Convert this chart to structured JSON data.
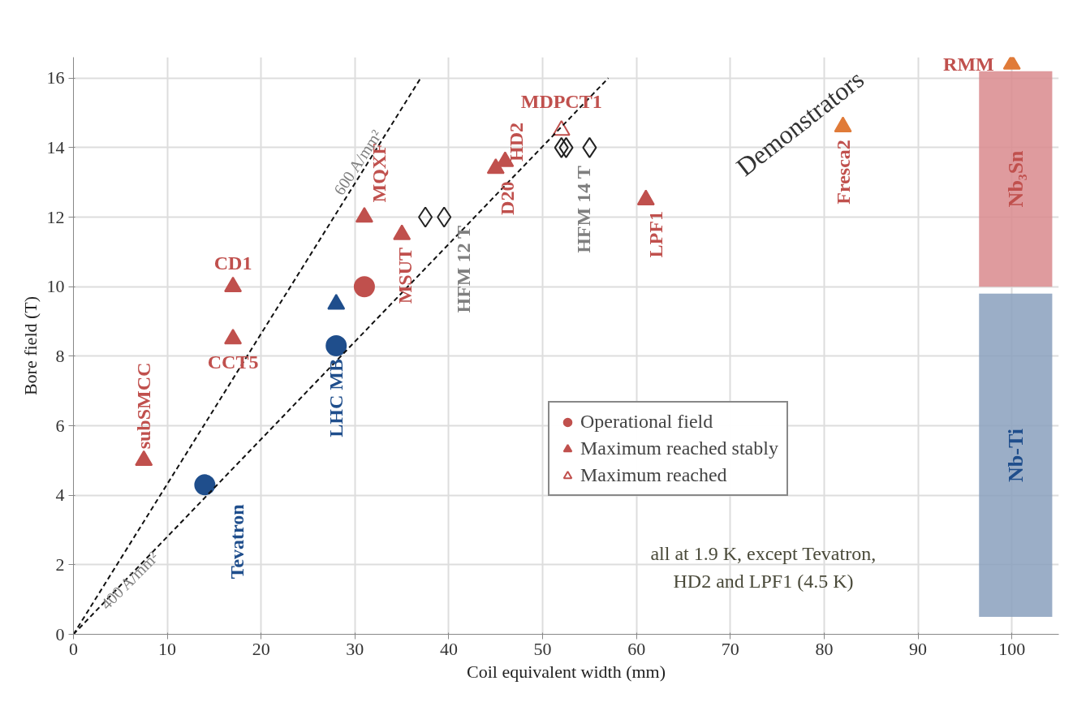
{
  "chart_data": {
    "type": "scatter",
    "xlabel": "Coil equivalent width (mm)",
    "ylabel": "Bore field (T)",
    "xlim": [
      0,
      105
    ],
    "ylim": [
      0,
      16.6
    ],
    "xticks": [
      0,
      10,
      20,
      30,
      40,
      50,
      60,
      70,
      80,
      90,
      100
    ],
    "yticks": [
      0,
      2,
      4,
      6,
      8,
      10,
      12,
      14,
      16
    ],
    "grid": true,
    "legend": "right",
    "series": [
      {
        "name": "Operational field",
        "color": "#c0504d",
        "marker": "circle",
        "x": [
          31
        ],
        "values": [
          10
        ]
      },
      {
        "color": "#1f4e8c",
        "marker": "circle",
        "x": [
          14,
          28
        ],
        "values": [
          4.3,
          8.3
        ]
      },
      {
        "name": "Maximum reached stably",
        "color": "#c0504d",
        "marker": "triangle",
        "x": [
          7.5,
          17,
          17,
          31,
          35,
          45,
          46,
          61
        ],
        "values": [
          5,
          10,
          8.5,
          12,
          11.5,
          13.4,
          13.6,
          12.5
        ]
      },
      {
        "name": "Maximum reached",
        "color": "#c0504d",
        "marker": "triangle",
        "x": [
          52
        ],
        "values": [
          14.5
        ]
      },
      {
        "color": "#1f4e8c",
        "marker": "triangle",
        "x": [
          28
        ],
        "values": [
          9.5
        ]
      },
      {
        "color": "#e07b39",
        "marker": "triangle",
        "x": [
          82,
          100
        ],
        "values": [
          14.6,
          16.4
        ]
      },
      {
        "color": "#222222",
        "marker": "diamond",
        "x": [
          37.5,
          39.5,
          52,
          52.5,
          55
        ],
        "values": [
          12,
          12,
          14,
          14,
          14
        ]
      },
      {
        "type": "line",
        "color": "#111111",
        "line_style": "dashed",
        "marker": "none",
        "x": [
          0,
          37
        ],
        "values": [
          0,
          16
        ]
      },
      {
        "type": "line",
        "color": "#111111",
        "line_style": "dashed",
        "marker": "none",
        "x": [
          0,
          57
        ],
        "values": [
          0,
          16
        ]
      }
    ],
    "bands": [
      {
        "axis": "y",
        "from": 10,
        "to": 16.2,
        "label": "Nb₃Sn",
        "color": "#d98a8d"
      },
      {
        "axis": "y",
        "from": 0.5,
        "to": 9.8,
        "label": "Nb-Ti",
        "color": "#8aa0bd"
      }
    ],
    "annotations": [
      {
        "text": "subSMCC",
        "x": 7.5,
        "y": 5
      },
      {
        "text": "CD1",
        "x": 17,
        "y": 10
      },
      {
        "text": "CCT5",
        "x": 17,
        "y": 8.5
      },
      {
        "text": "Tevatron",
        "x": 14,
        "y": 4.3
      },
      {
        "text": "LHC MB",
        "x": 28,
        "y": 8.3
      },
      {
        "text": "MQXF",
        "x": 31,
        "y": 12
      },
      {
        "text": "MSUT",
        "x": 35,
        "y": 11.5
      },
      {
        "text": "HFM 12 T",
        "x": 39.5,
        "y": 12
      },
      {
        "text": "D20",
        "x": 45,
        "y": 13.4
      },
      {
        "text": "HD2",
        "x": 46,
        "y": 13.6
      },
      {
        "text": "MDPCT1",
        "x": 52,
        "y": 14.5
      },
      {
        "text": "HFM 14 T",
        "x": 53,
        "y": 14
      },
      {
        "text": "LPF1",
        "x": 61,
        "y": 12.5
      },
      {
        "text": "Fresca2",
        "x": 82,
        "y": 14.6
      },
      {
        "text": "RMM",
        "x": 100,
        "y": 16.4
      },
      {
        "text": "600 A/mm²",
        "x": 31,
        "y": 13.4
      },
      {
        "text": "400 A/mm²",
        "x": 6,
        "y": 1.7
      },
      "Demonstrators",
      "all at 1.9 K, except Tevatron,\nHD2 and LPF1 (4.5 K)"
    ]
  }
}
